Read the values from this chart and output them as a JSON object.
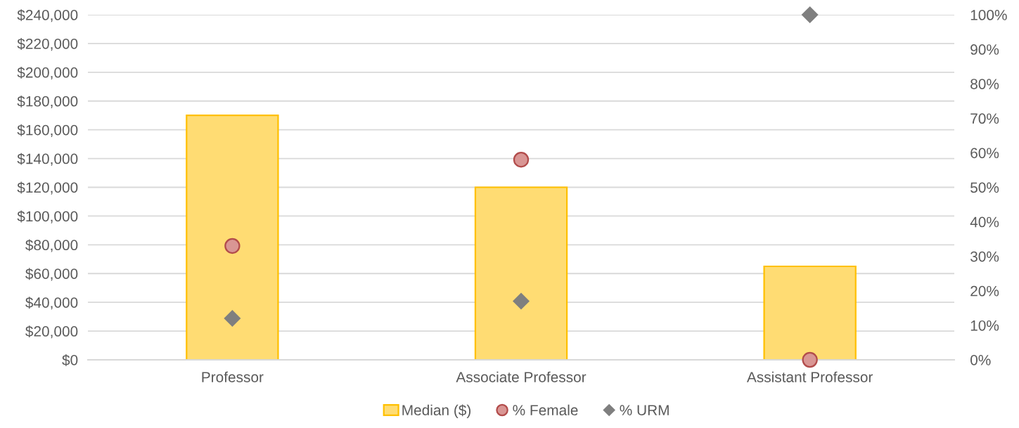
{
  "chart_data": {
    "type": "bar",
    "categories": [
      "Professor",
      "Associate Professor",
      "Assistant Professor"
    ],
    "series": [
      {
        "name": "Median ($)",
        "color": "#ffc000",
        "values": [
          170000,
          120000,
          65000
        ]
      },
      {
        "name": "% Female",
        "type": "scatter",
        "axis": "y2",
        "color": "#d99694",
        "marker": "circle",
        "values": [
          33,
          58,
          0
        ]
      },
      {
        "name": "% URM",
        "type": "scatter",
        "axis": "y2",
        "color": "#7f7f7f",
        "marker": "diamond",
        "values": [
          12,
          17,
          100
        ]
      }
    ],
    "ylim": [
      0,
      240000
    ],
    "yticks": [
      {
        "value": 0,
        "label": "$0"
      },
      {
        "value": 20000,
        "label": "$20,000"
      },
      {
        "value": 40000,
        "label": "$40,000"
      },
      {
        "value": 60000,
        "label": "$60,000"
      },
      {
        "value": 80000,
        "label": "$80,000"
      },
      {
        "value": 100000,
        "label": "$100,000"
      },
      {
        "value": 120000,
        "label": "$120,000"
      },
      {
        "value": 140000,
        "label": "$140,000"
      },
      {
        "value": 160000,
        "label": "$160,000"
      },
      {
        "value": 180000,
        "label": "$180,000"
      },
      {
        "value": 200000,
        "label": "$200,000"
      },
      {
        "value": 220000,
        "label": "$220,000"
      },
      {
        "value": 240000,
        "label": "$240,000"
      }
    ],
    "y2lim": [
      0,
      100
    ],
    "y2ticks": [
      {
        "value": 0,
        "label": "0%"
      },
      {
        "value": 10,
        "label": "10%"
      },
      {
        "value": 20,
        "label": "20%"
      },
      {
        "value": 30,
        "label": "30%"
      },
      {
        "value": 40,
        "label": "40%"
      },
      {
        "value": 50,
        "label": "50%"
      },
      {
        "value": 60,
        "label": "60%"
      },
      {
        "value": 70,
        "label": "70%"
      },
      {
        "value": 80,
        "label": "80%"
      },
      {
        "value": 90,
        "label": "90%"
      },
      {
        "value": 100,
        "label": "100%"
      }
    ],
    "grid": "y",
    "legend": "bottom"
  }
}
